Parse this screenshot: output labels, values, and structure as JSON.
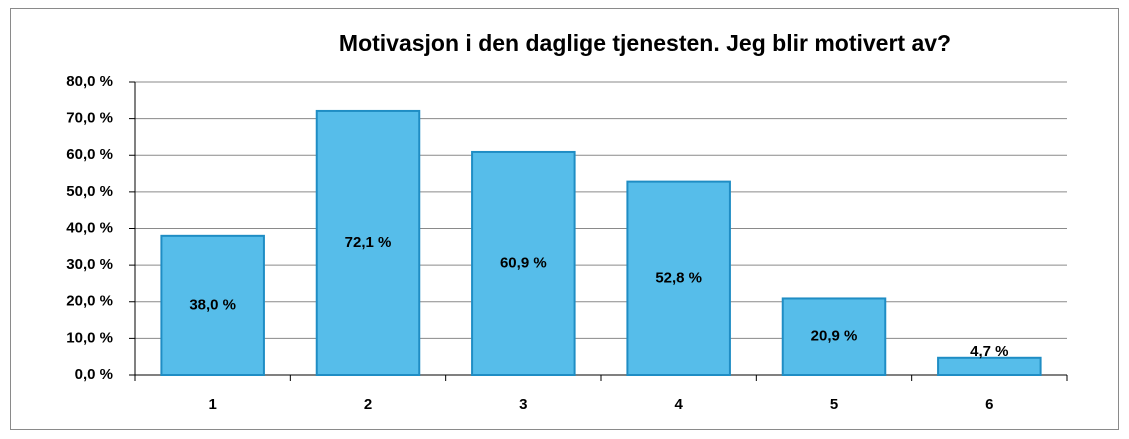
{
  "chart_data": {
    "type": "bar",
    "title": "Motivasjon i den daglige tjenesten. Jeg blir motivert av?",
    "categories": [
      "1",
      "2",
      "3",
      "4",
      "5",
      "6"
    ],
    "values": [
      38.0,
      72.1,
      60.9,
      52.8,
      20.9,
      4.7
    ],
    "value_labels": [
      "38,0 %",
      "72,1 %",
      "60,9 %",
      "52,8 %",
      "20,9 %",
      "4,7 %"
    ],
    "color": "#56bdea",
    "ylim": [
      0,
      80
    ],
    "yticks": [
      {
        "value": 0,
        "label": "0,0 %"
      },
      {
        "value": 10,
        "label": "10,0 %"
      },
      {
        "value": 20,
        "label": "20,0 %"
      },
      {
        "value": 30,
        "label": "30,0 %"
      },
      {
        "value": 40,
        "label": "40,0 %"
      },
      {
        "value": 50,
        "label": "50,0 %"
      },
      {
        "value": 60,
        "label": "60,0 %"
      },
      {
        "value": 70,
        "label": "70,0 %"
      },
      {
        "value": 80,
        "label": "80,0 %"
      }
    ],
    "grid": true
  }
}
